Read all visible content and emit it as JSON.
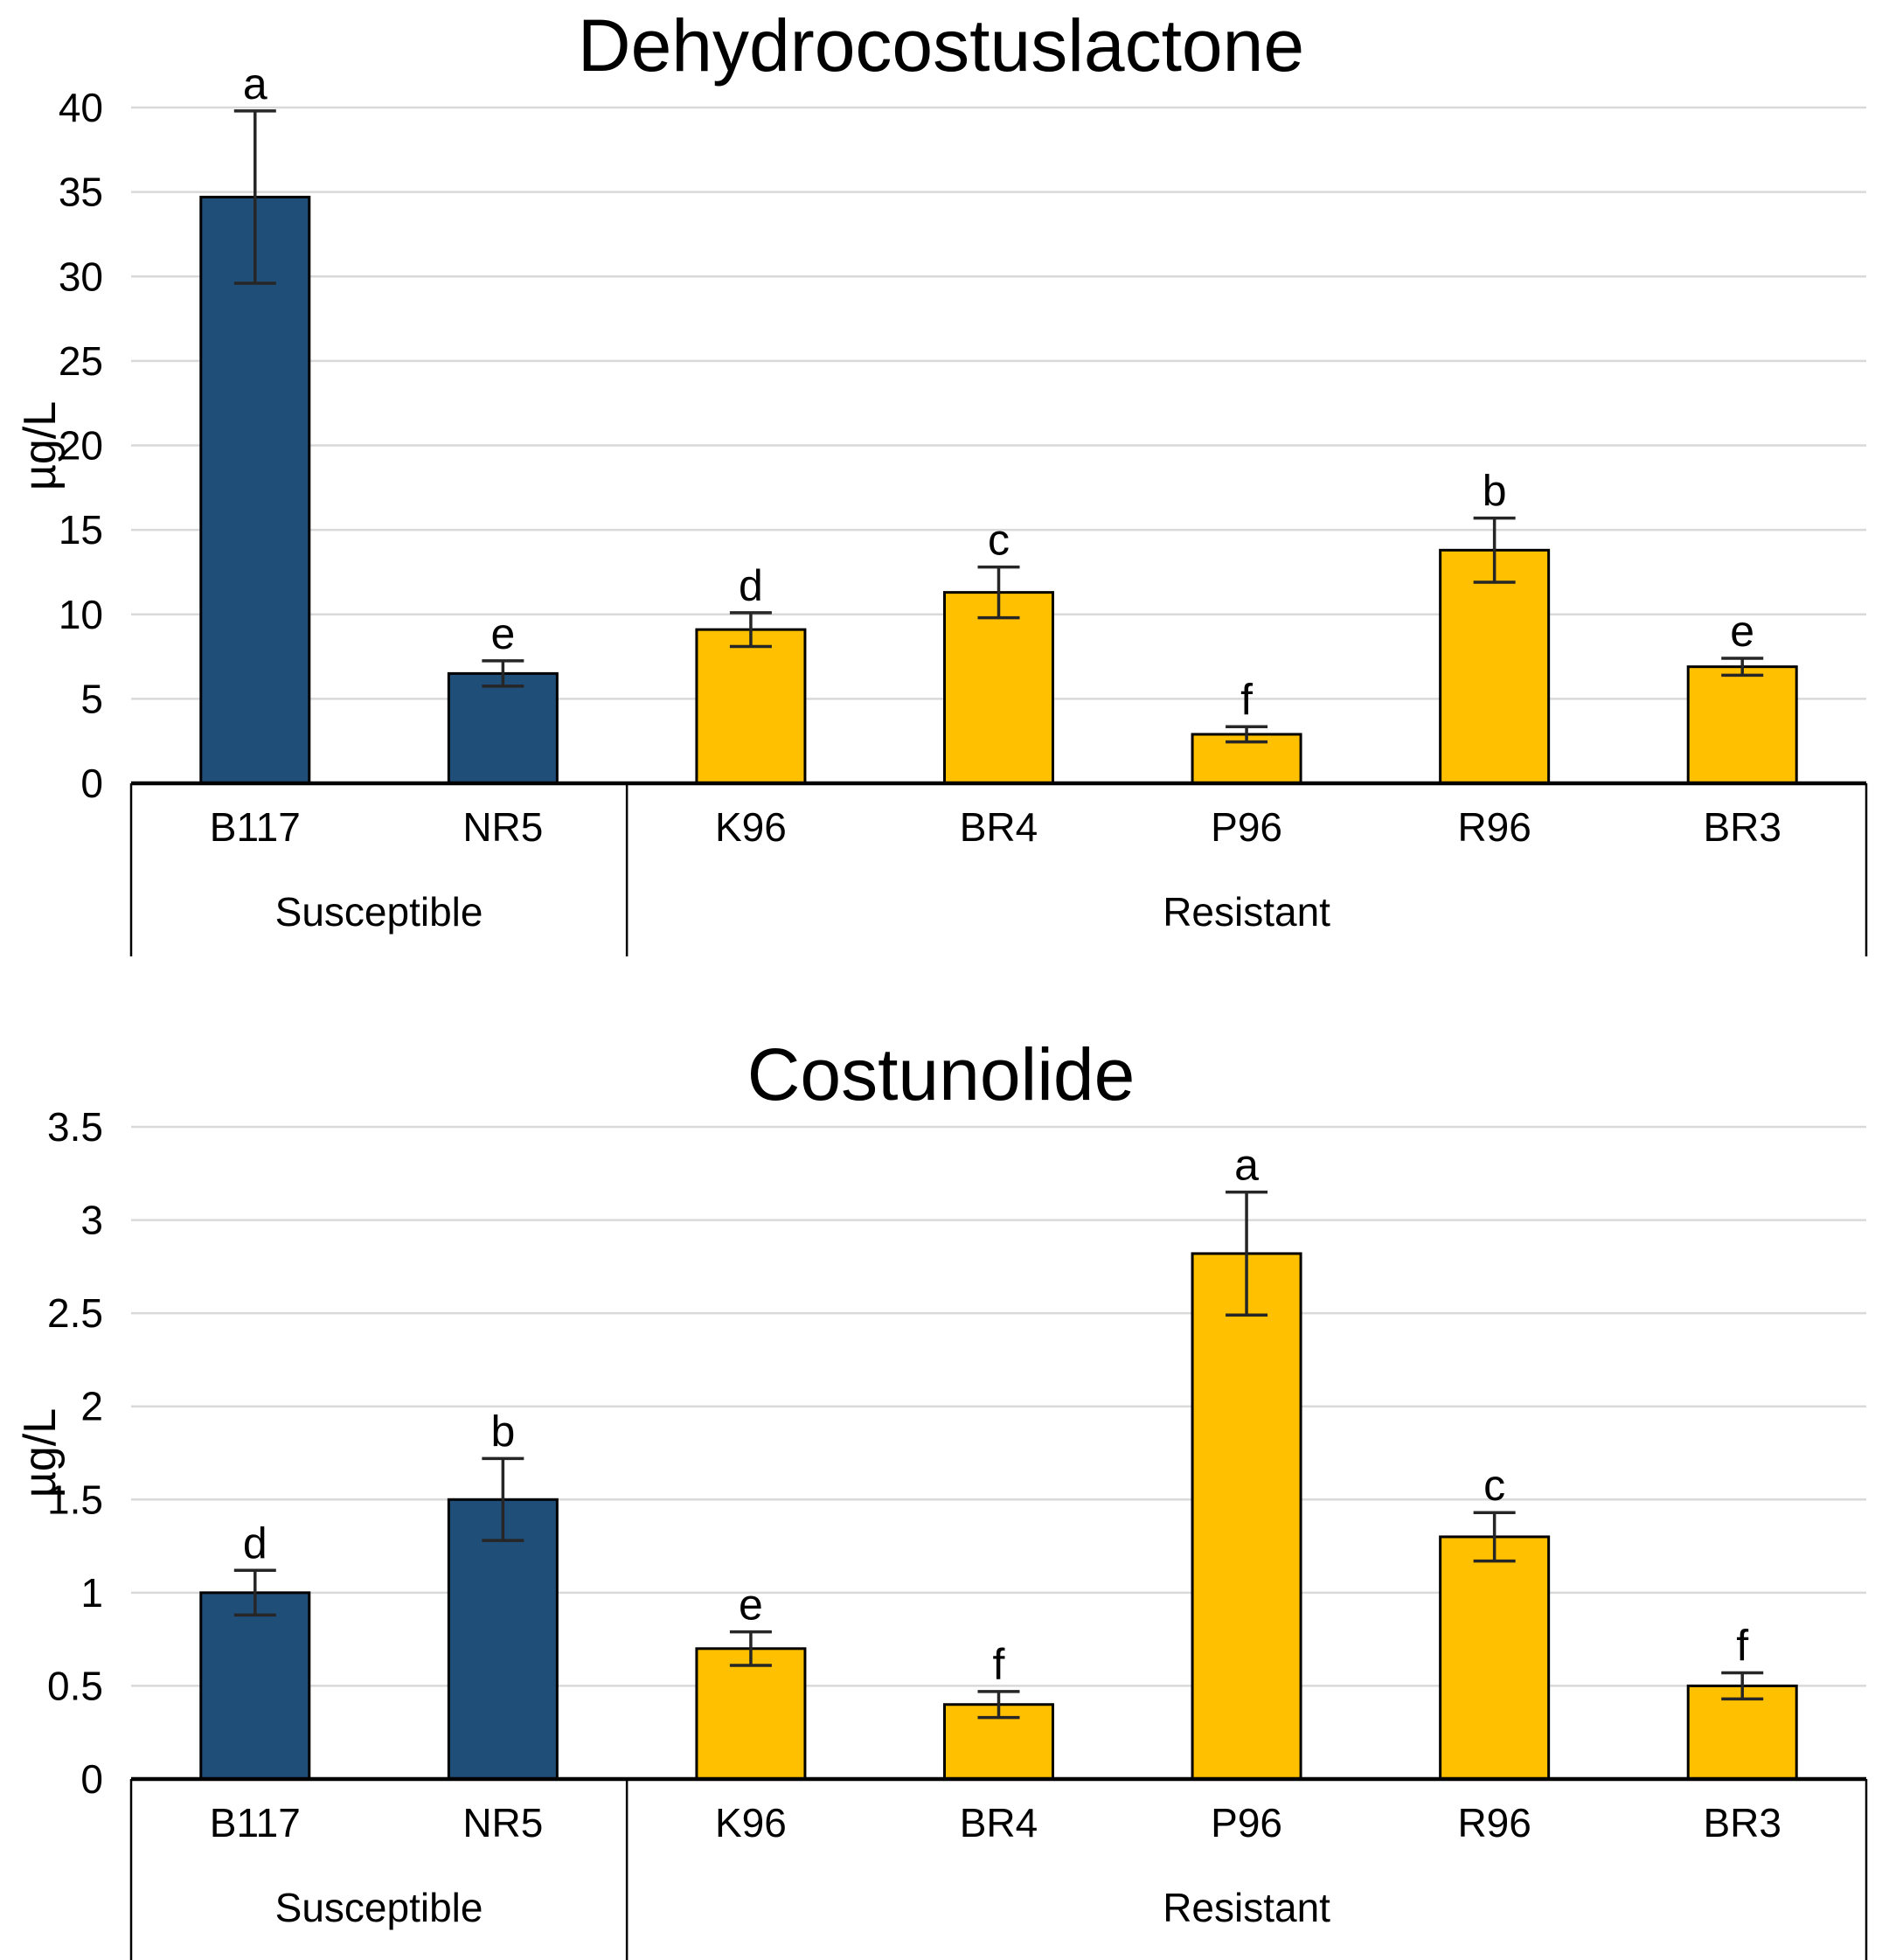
{
  "page": {
    "background": "#FFFFFF",
    "description": "Two stacked bar charts comparing sesquiterpene lactone concentrations in susceptible and resistant lettuce lines"
  },
  "colors": {
    "susceptible_bar": "#1F4E79",
    "resistant_bar": "#FFC000",
    "bar_border": "#000000",
    "gridline": "#D9D9D9",
    "axis_line": "#000000",
    "error_bar": "#262626",
    "text": "#000000"
  },
  "chart_data": [
    {
      "type": "bar",
      "title": "Dehydrocostuslactone",
      "xlabel": "",
      "ylabel": "µg/L",
      "ylim": [
        0,
        40
      ],
      "ytick_step": 5,
      "ytick_labels": [
        "0",
        "5",
        "10",
        "15",
        "20",
        "25",
        "30",
        "35",
        "40"
      ],
      "grid": true,
      "legend": "none",
      "categories": [
        "B117",
        "NR5",
        "K96",
        "BR4",
        "P96",
        "R96",
        "BR3"
      ],
      "values": [
        34.7,
        6.5,
        9.1,
        11.3,
        2.9,
        13.8,
        6.9
      ],
      "error_bars": [
        5.1,
        0.75,
        1.0,
        1.5,
        0.45,
        1.9,
        0.5
      ],
      "sig_letters": [
        "a",
        "e",
        "d",
        "c",
        "f",
        "b",
        "e"
      ],
      "groups": [
        {
          "label": "Susceptible",
          "categories": [
            "B117",
            "NR5"
          ],
          "bar_color": "#1F4E79"
        },
        {
          "label": "Resistant",
          "categories": [
            "K96",
            "BR4",
            "P96",
            "R96",
            "BR3"
          ],
          "bar_color": "#FFC000"
        }
      ]
    },
    {
      "type": "bar",
      "title": "Costunolide",
      "xlabel": "",
      "ylabel": "µg/L",
      "ylim": [
        0,
        3.5
      ],
      "ytick_step": 0.5,
      "ytick_labels": [
        "0",
        "0.5",
        "1",
        "1.5",
        "2",
        "2.5",
        "3",
        "3.5"
      ],
      "grid": true,
      "legend": "none",
      "categories": [
        "B117",
        "NR5",
        "K96",
        "BR4",
        "P96",
        "R96",
        "BR3"
      ],
      "values": [
        1.0,
        1.5,
        0.7,
        0.4,
        2.82,
        1.3,
        0.5
      ],
      "error_bars": [
        0.12,
        0.22,
        0.09,
        0.07,
        0.33,
        0.13,
        0.07
      ],
      "sig_letters": [
        "d",
        "b",
        "e",
        "f",
        "a",
        "c",
        "f"
      ],
      "groups": [
        {
          "label": "Susceptible",
          "categories": [
            "B117",
            "NR5"
          ],
          "bar_color": "#1F4E79"
        },
        {
          "label": "Resistant",
          "categories": [
            "K96",
            "BR4",
            "P96",
            "R96",
            "BR3"
          ],
          "bar_color": "#FFC000"
        }
      ]
    }
  ]
}
